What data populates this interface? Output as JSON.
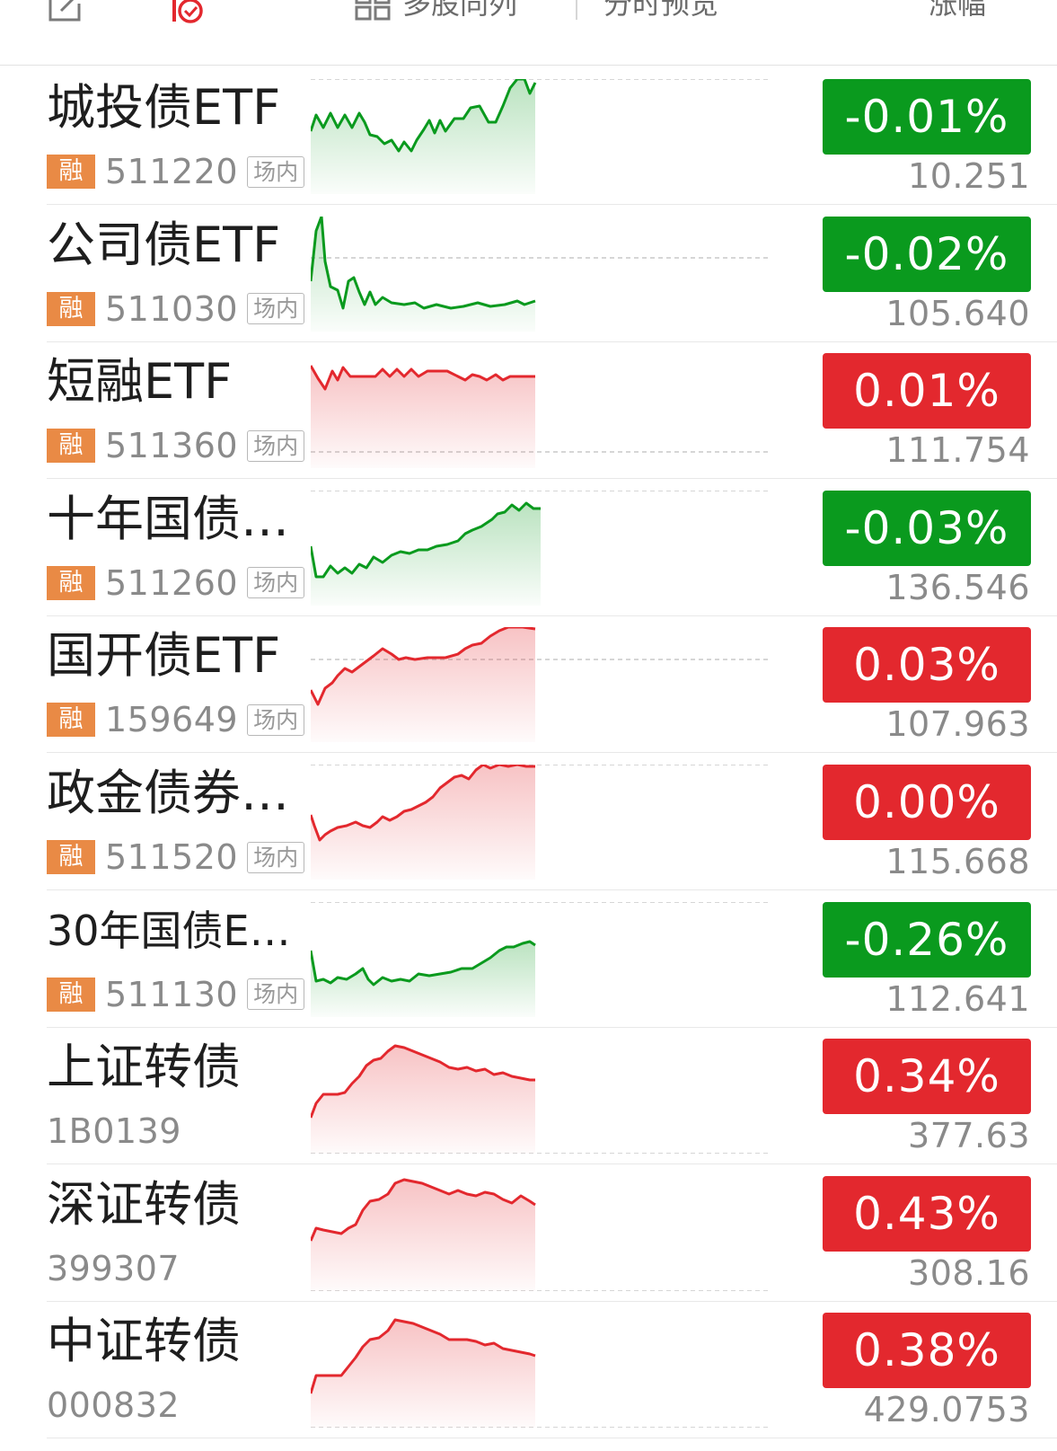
{
  "toolbar": {
    "edit_icon": "edit-icon",
    "alert_icon": "price-alert-icon",
    "compare_icon": "grid-icon",
    "compare_label": "多股同列",
    "preview_label": "分时预览",
    "change_header": "涨幅"
  },
  "colors": {
    "up": "#e3282e",
    "down": "#0a9a1e",
    "margin_tag": "#e98a45"
  },
  "rows": [
    {
      "name": "城投债ETF",
      "code": "511220",
      "margin_tag": "融",
      "market": "场内",
      "change": "-0.01%",
      "price": "10.251",
      "trend": "down"
    },
    {
      "name": "公司债ETF",
      "code": "511030",
      "margin_tag": "融",
      "market": "场内",
      "change": "-0.02%",
      "price": "105.640",
      "trend": "down"
    },
    {
      "name": "短融ETF",
      "code": "511360",
      "margin_tag": "融",
      "market": "场内",
      "change": "0.01%",
      "price": "111.754",
      "trend": "up"
    },
    {
      "name": "十年国债ETF",
      "code": "511260",
      "margin_tag": "融",
      "market": "场内",
      "change": "-0.03%",
      "price": "136.546",
      "trend": "down"
    },
    {
      "name": "国开债ETF",
      "code": "159649",
      "margin_tag": "融",
      "market": "场内",
      "change": "0.03%",
      "price": "107.963",
      "trend": "up"
    },
    {
      "name": "政金债券ETF",
      "code": "511520",
      "margin_tag": "融",
      "market": "场内",
      "change": "0.00%",
      "price": "115.668",
      "trend": "up"
    },
    {
      "name": "30年国债ET...",
      "code": "511130",
      "margin_tag": "融",
      "market": "场内",
      "change": "-0.26%",
      "price": "112.641",
      "trend": "down"
    },
    {
      "name": "上证转债",
      "code": "1B0139",
      "change": "0.34%",
      "price": "377.63",
      "trend": "up"
    },
    {
      "name": "深证转债",
      "code": "399307",
      "change": "0.43%",
      "price": "308.16",
      "trend": "up"
    },
    {
      "name": "中证转债",
      "code": "000832",
      "change": "0.38%",
      "price": "429.0753",
      "trend": "up"
    }
  ]
}
